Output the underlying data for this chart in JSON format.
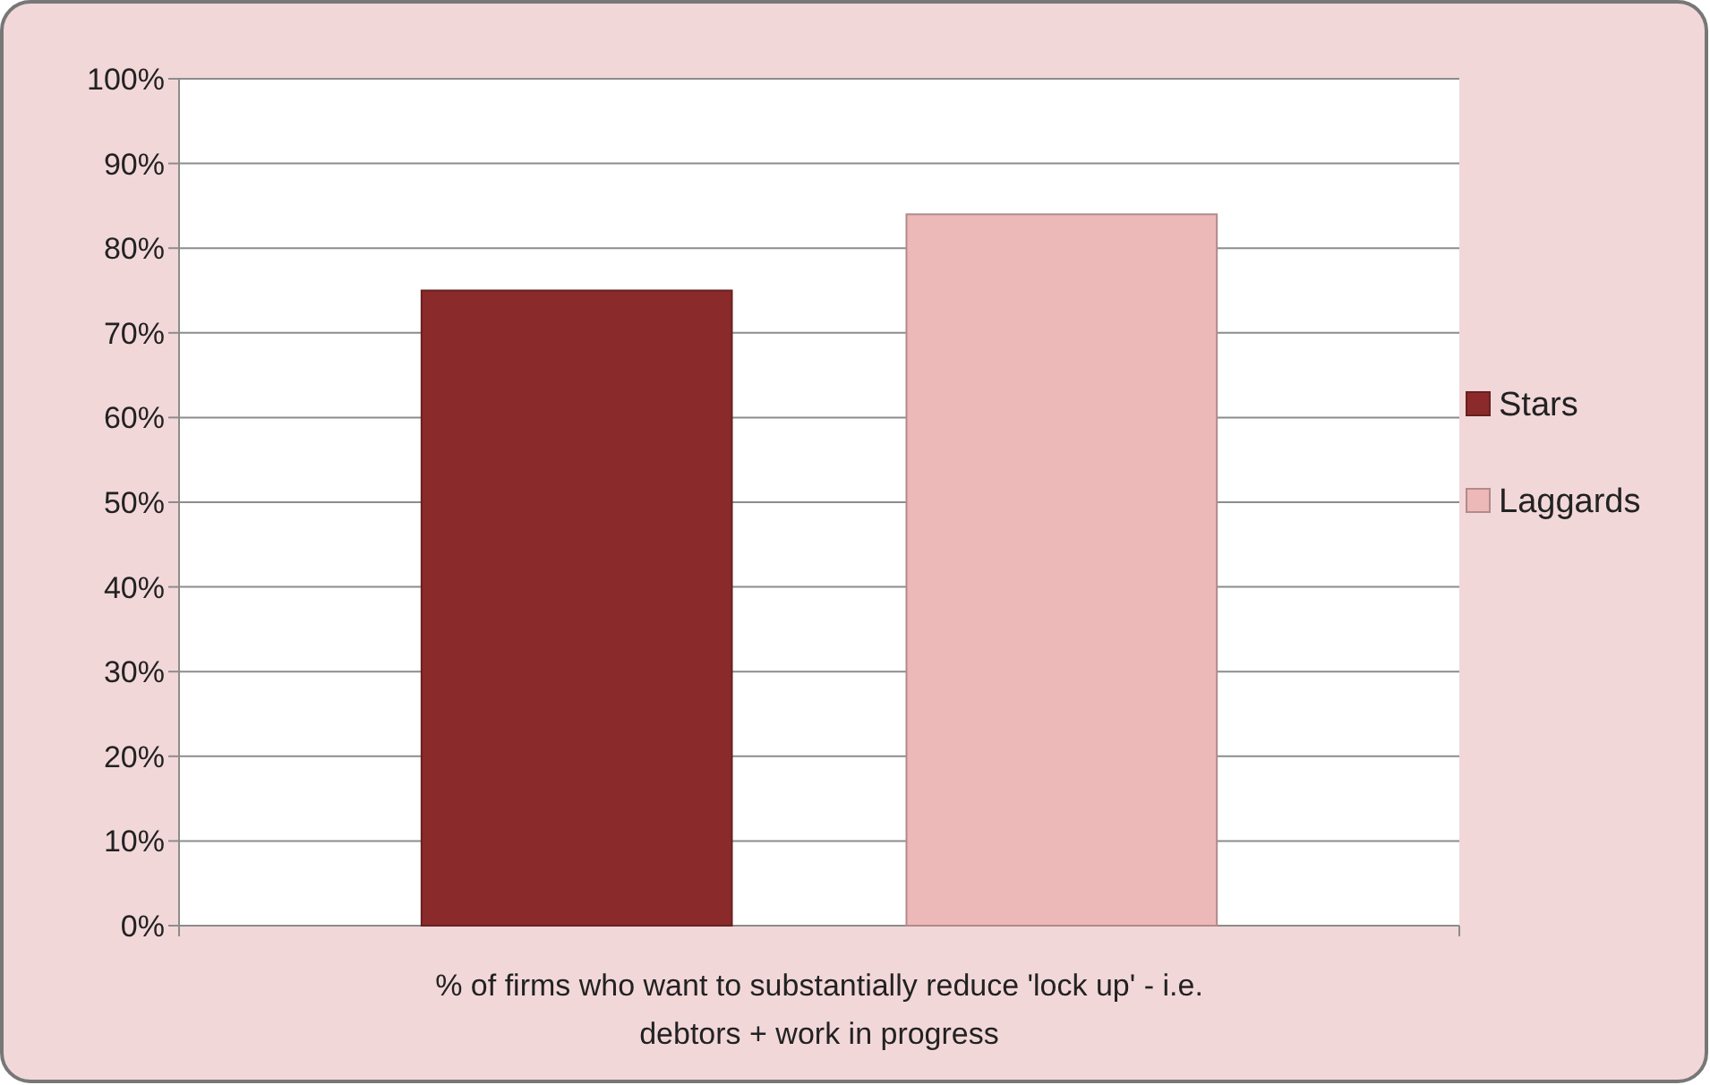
{
  "chart_data": {
    "type": "bar",
    "categories": [
      "% of firms who want to substantially reduce 'lock up' - i.e. debtors + work in progress"
    ],
    "series": [
      {
        "name": "Stars",
        "color": "#8b2a2a",
        "values": [
          0.75
        ]
      },
      {
        "name": "Laggards",
        "color": "#edb8b8",
        "values": [
          0.84
        ]
      }
    ],
    "ylim": [
      0,
      1
    ],
    "yticks": [
      {
        "value": 0,
        "label": "0%"
      },
      {
        "value": 0.1,
        "label": "10%"
      },
      {
        "value": 0.2,
        "label": "20%"
      },
      {
        "value": 0.3,
        "label": "30%"
      },
      {
        "value": 0.4,
        "label": "40%"
      },
      {
        "value": 0.5,
        "label": "50%"
      },
      {
        "value": 0.6,
        "label": "60%"
      },
      {
        "value": 0.7,
        "label": "70%"
      },
      {
        "value": 0.8,
        "label": "80%"
      },
      {
        "value": 0.9,
        "label": "90%"
      },
      {
        "value": 1,
        "label": "100%"
      }
    ],
    "grid": "y",
    "legend": "right"
  }
}
